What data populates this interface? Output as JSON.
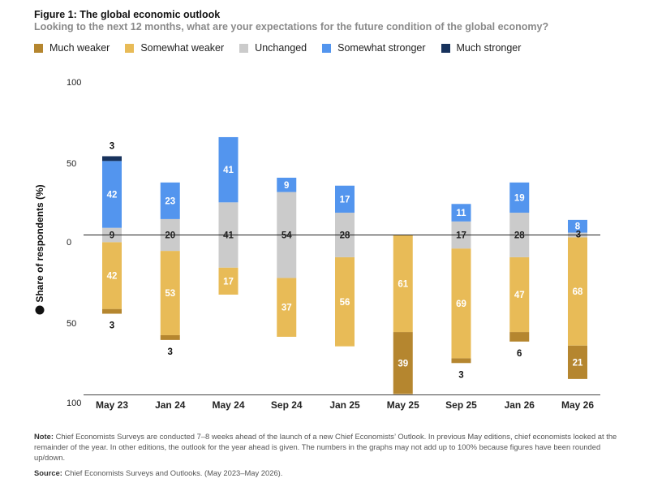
{
  "figure": {
    "title": "Figure 1: The global economic outlook",
    "subtitle": "Looking to the next 12 months, what are your expectations for the future condition of the global economy?"
  },
  "footer": {
    "note_label": "Note:",
    "note_text": " Chief Economists Surveys are conducted 7–8 weeks ahead of the launch of a new Chief Economists’ Outlook. In previous May editions, chief economists looked at the remainder of the year. In other editions, the outlook for the year ahead is given. The numbers in the graphs may not add up to 100% because figures have been rounded up/down.",
    "source_label": "Source:",
    "source_text": " Chief Economists Surveys and Outlooks. (May 2023–May 2026)."
  },
  "colors": {
    "much_weaker": "#b5862f",
    "somewhat_weaker": "#e8bb57",
    "unchanged": "#cbcbcb",
    "somewhat_stronger": "#5395ee",
    "much_stronger": "#17325c"
  },
  "chart_data": {
    "type": "bar",
    "stacked": "diverging",
    "ylabel": "Share of respondents (%)",
    "ylabel_icon": "info-icon",
    "y_ticks": [
      "100",
      "50",
      "0",
      "50",
      "100"
    ],
    "ylim": [
      -100,
      100
    ],
    "zero_line": true,
    "grid": false,
    "legend_position": "top-left",
    "categories": [
      "May 23",
      "Jan 24",
      "May 24",
      "Sep 24",
      "Jan 25",
      "May 25",
      "Sep 25",
      "Jan 26",
      "May 26"
    ],
    "series": [
      {
        "name": "Much weaker",
        "key": "much_weaker",
        "values": [
          3,
          3,
          0,
          0,
          0,
          39,
          3,
          6,
          21
        ]
      },
      {
        "name": "Somewhat weaker",
        "key": "somewhat_weaker",
        "values": [
          42,
          53,
          17,
          37,
          56,
          61,
          69,
          47,
          68
        ]
      },
      {
        "name": "Unchanged",
        "key": "unchanged",
        "values": [
          9,
          20,
          41,
          54,
          28,
          0,
          17,
          28,
          3
        ]
      },
      {
        "name": "Somewhat stronger",
        "key": "somewhat_stronger",
        "values": [
          42,
          23,
          41,
          9,
          17,
          0,
          11,
          19,
          8
        ]
      },
      {
        "name": "Much stronger",
        "key": "much_stronger",
        "values": [
          3,
          0,
          0,
          0,
          0,
          0,
          0,
          0,
          0
        ]
      }
    ]
  }
}
